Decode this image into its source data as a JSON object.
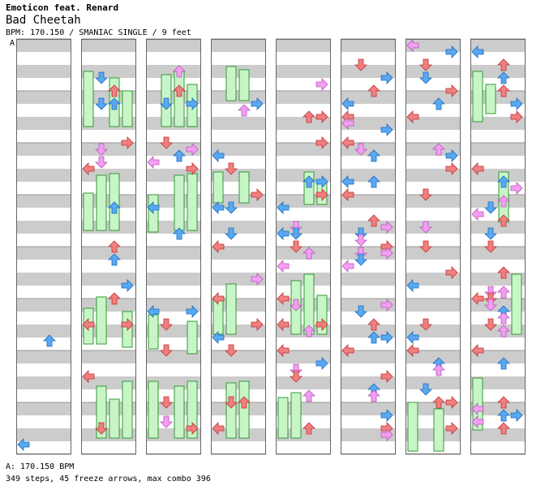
{
  "header": {
    "artist": "Emoticon feat. Renard",
    "title": "Bad Cheetah",
    "info": "BPM: 170.150 / SMANIAC SINGLE / 9 feet",
    "marker": "A"
  },
  "footer": {
    "bpm_line": "A: 170.150 BPM",
    "stats_line": "349 steps, 45 freeze arrows, max combo 396"
  },
  "chart_data": {
    "type": "step-chart",
    "mode": "single",
    "lanes": [
      "left",
      "down",
      "up",
      "right"
    ],
    "columns": 8,
    "measures_per_column": 4,
    "steps": 349,
    "freeze_arrows": 45,
    "max_combo": 396,
    "colors": {
      "quarter": "#f08080",
      "eighth": "#5aa8f0",
      "sixteenth": "#f0a0f0",
      "freeze": "#c8f5c8",
      "band": "#cccccc"
    }
  }
}
